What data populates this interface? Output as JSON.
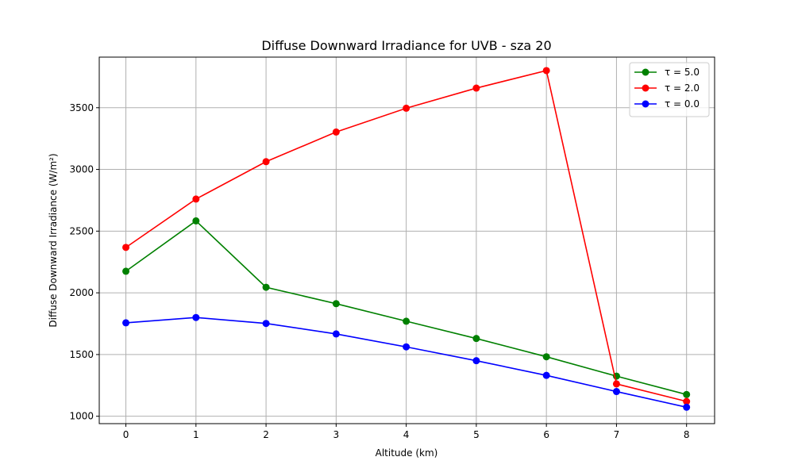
{
  "chart_data": {
    "type": "line",
    "title": "Diffuse Downward Irradiance for UVB - sza 20",
    "xlabel": "Altitude (km)",
    "ylabel": "Diffuse Downward Irradiance (W/m²)",
    "x": [
      0,
      1,
      2,
      3,
      4,
      5,
      6,
      7,
      8
    ],
    "xlim": [
      -0.38,
      8.4
    ],
    "ylim": [
      940,
      3910
    ],
    "xticks": [
      "0",
      "1",
      "2",
      "3",
      "4",
      "5",
      "6",
      "7",
      "8"
    ],
    "yticks": [
      "1000",
      "1500",
      "2000",
      "2500",
      "3000",
      "3500"
    ],
    "grid": true,
    "legend_position": "top-right",
    "series": [
      {
        "name": "τ = 5.0",
        "color": "#008000",
        "values": [
          2175,
          2583,
          2045,
          1912,
          1770,
          1630,
          1482,
          1325,
          1176
        ]
      },
      {
        "name": "τ = 2.0",
        "color": "#ff0000",
        "values": [
          2368,
          2760,
          3063,
          3303,
          3496,
          3659,
          3801,
          1262,
          1120
        ]
      },
      {
        "name": "τ = 0.0",
        "color": "#0000ff",
        "values": [
          1757,
          1800,
          1752,
          1667,
          1562,
          1450,
          1331,
          1200,
          1073
        ]
      }
    ]
  }
}
